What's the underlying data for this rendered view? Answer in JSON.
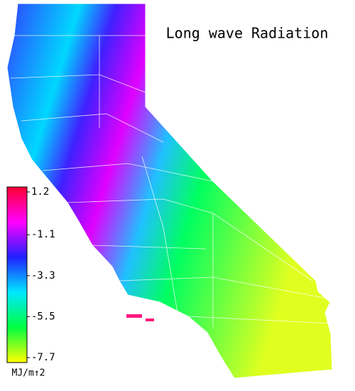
{
  "title": "Long wave Radiation",
  "colorbar": {
    "range": [
      -7.7,
      1.2
    ],
    "ticks": [
      1.2,
      -1.1,
      -3.3,
      -5.5,
      -7.7
    ],
    "unit": "MJ/m↑2",
    "colors": [
      "#ff0030",
      "#ff00ff",
      "#2020ff",
      "#00e8ff",
      "#00ff40",
      "#ffff00"
    ]
  }
}
